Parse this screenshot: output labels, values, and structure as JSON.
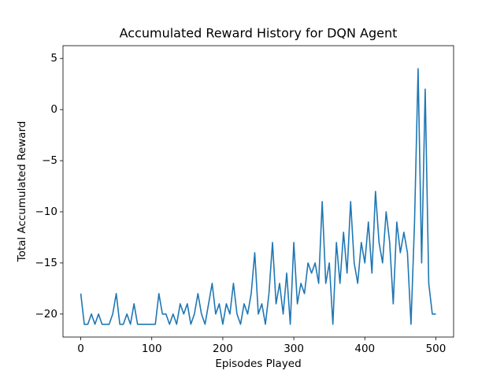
{
  "chart_data": {
    "type": "line",
    "title": "Accumulated Reward History for DQN Agent",
    "xlabel": "Episodes Played",
    "ylabel": "Total Accumulated Reward",
    "color": "#1f77b4",
    "x": [
      0,
      5,
      10,
      15,
      20,
      25,
      30,
      35,
      40,
      45,
      50,
      55,
      60,
      65,
      70,
      75,
      80,
      85,
      90,
      95,
      100,
      105,
      110,
      115,
      120,
      125,
      130,
      135,
      140,
      145,
      150,
      155,
      160,
      165,
      170,
      175,
      180,
      185,
      190,
      195,
      200,
      205,
      210,
      215,
      220,
      225,
      230,
      235,
      240,
      245,
      250,
      255,
      260,
      265,
      270,
      275,
      280,
      285,
      290,
      295,
      300,
      305,
      310,
      315,
      320,
      325,
      330,
      335,
      340,
      345,
      350,
      355,
      360,
      365,
      370,
      375,
      380,
      385,
      390,
      395,
      400,
      405,
      410,
      415,
      420,
      425,
      430,
      435,
      440,
      445,
      450,
      455,
      460,
      465,
      470,
      475,
      480,
      485,
      490,
      495,
      500
    ],
    "values": [
      -18,
      -21,
      -21,
      -20,
      -21,
      -20,
      -21,
      -21,
      -21,
      -20,
      -18,
      -21,
      -21,
      -20,
      -21,
      -19,
      -21,
      -21,
      -21,
      -21,
      -21,
      -21,
      -18,
      -20,
      -20,
      -21,
      -20,
      -21,
      -19,
      -20,
      -19,
      -21,
      -20,
      -18,
      -20,
      -21,
      -19,
      -17,
      -20,
      -19,
      -21,
      -19,
      -20,
      -17,
      -20,
      -21,
      -19,
      -20,
      -18,
      -14,
      -20,
      -19,
      -21,
      -18,
      -13,
      -19,
      -17,
      -20,
      -16,
      -21,
      -13,
      -19,
      -17,
      -18,
      -15,
      -16,
      -15,
      -17,
      -9,
      -17,
      -15,
      -21,
      -13,
      -17,
      -12,
      -16,
      -9,
      -15,
      -17,
      -13,
      -15,
      -11,
      -16,
      -8,
      -13,
      -15,
      -10,
      -13,
      -19,
      -11,
      -14,
      -12,
      -14,
      -21,
      -11,
      4,
      -15,
      2,
      -17,
      -20,
      -20
    ],
    "xlim": [
      -25,
      525
    ],
    "ylim": [
      -22.25,
      6.25
    ],
    "xticks": [
      0,
      100,
      200,
      300,
      400,
      500
    ],
    "yticks": [
      {
        "value": -20,
        "label": "−20"
      },
      {
        "value": -15,
        "label": "−15"
      },
      {
        "value": -10,
        "label": "−10"
      },
      {
        "value": -5,
        "label": "−5"
      },
      0,
      5
    ]
  }
}
